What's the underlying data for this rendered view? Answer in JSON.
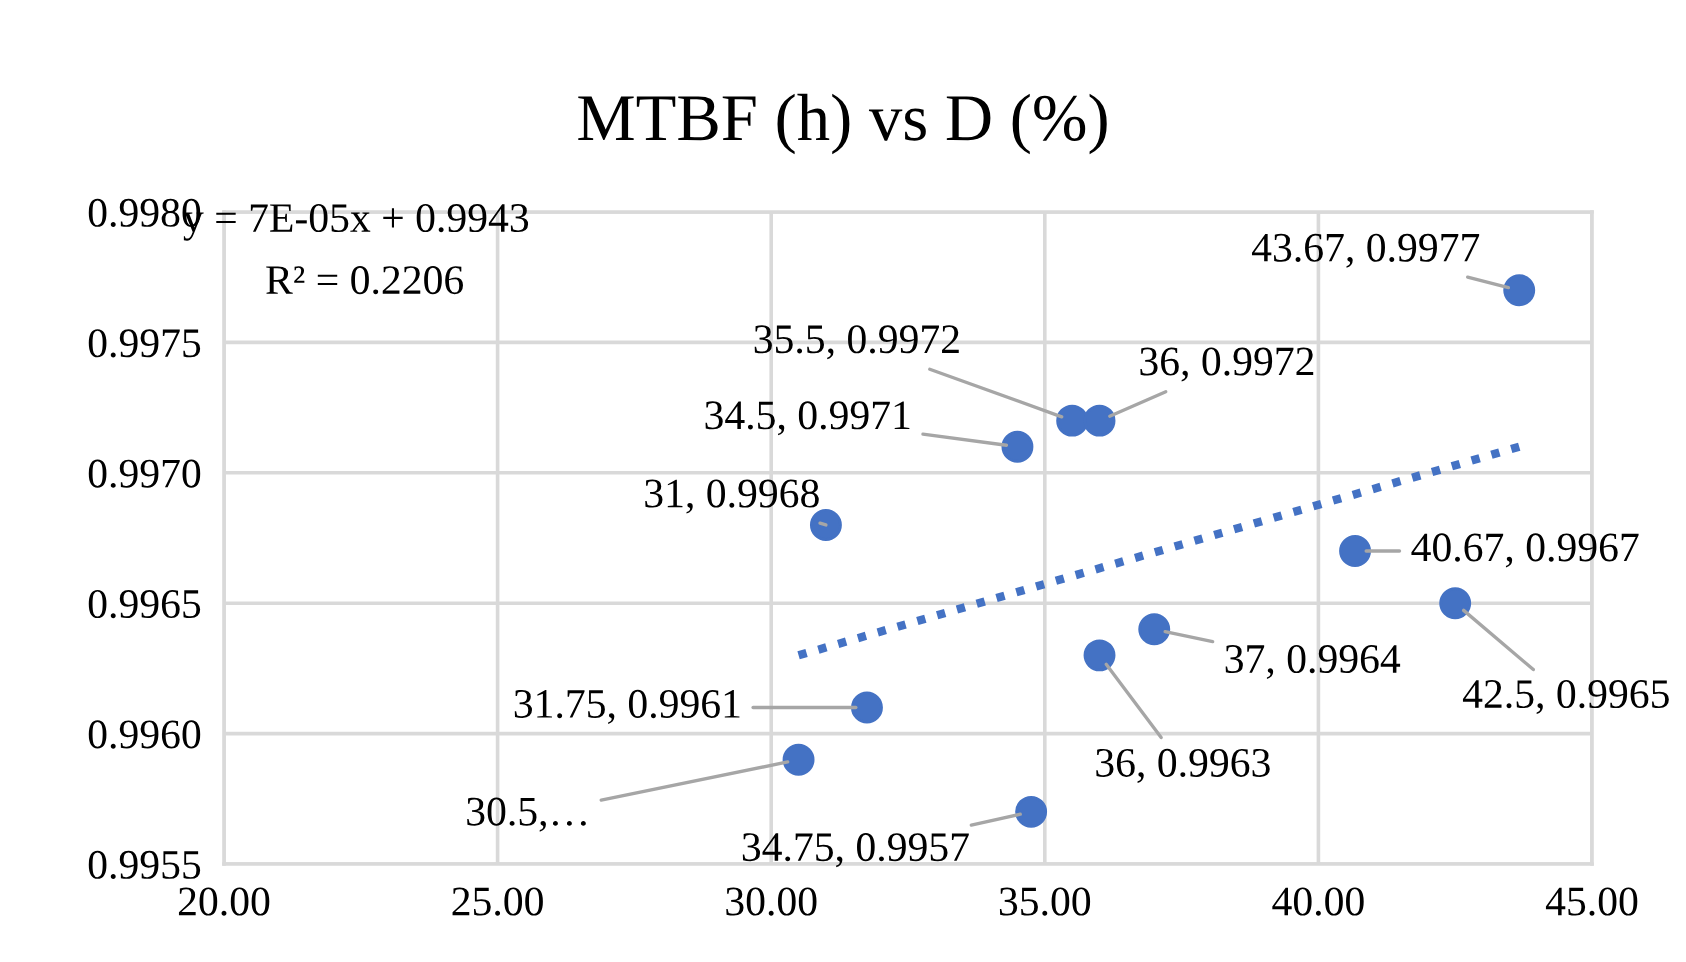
{
  "chart_data": {
    "type": "scatter",
    "title": "MTBF (h) vs D (%)",
    "x": [
      30.5,
      31,
      31.75,
      34.5,
      34.75,
      35.5,
      36,
      36,
      37,
      40.67,
      42.5,
      43.67
    ],
    "series": [
      {
        "color": "#4472c4",
        "marker": "circle",
        "values": [
          0.9959,
          0.9968,
          0.9961,
          0.9971,
          0.9957,
          0.9972,
          0.9972,
          0.9963,
          0.9964,
          0.9967,
          0.9965,
          0.9977
        ],
        "value_labels": [
          "30.5,…",
          "31, 0.9968",
          "31.75, 0.9961",
          "34.5, 0.9971",
          "34.75, 0.9957",
          "35.5, 0.9972",
          "36, 0.9972",
          "36, 0.9963",
          "37, 0.9964",
          "40.67, 0.9967",
          "42.5, 0.9965",
          "43.67, 0.9977"
        ]
      },
      {
        "type": "line",
        "color": "#4472c4",
        "line_style": "dotted",
        "marker": "none",
        "x": [
          30.5,
          43.67
        ],
        "values": [
          0.9963,
          0.9971
        ]
      }
    ],
    "annotations": [
      "y = 7E-05x + 0.9943",
      "R² = 0.2206"
    ],
    "xlim": [
      20,
      45
    ],
    "xticks": [
      {
        "value": 20,
        "label": "20.00"
      },
      {
        "value": 25,
        "label": "25.00"
      },
      {
        "value": 30,
        "label": "30.00"
      },
      {
        "value": 35,
        "label": "35.00"
      },
      {
        "value": 40,
        "label": "40.00"
      },
      {
        "value": 45,
        "label": "45.00"
      }
    ],
    "ylim": [
      0.9955,
      0.998
    ],
    "yticks": [
      {
        "value": 0.9955,
        "label": "0.9955"
      },
      {
        "value": 0.996,
        "label": "0.9960"
      },
      {
        "value": 0.9965,
        "label": "0.9965"
      },
      {
        "value": 0.997,
        "label": "0.9970"
      },
      {
        "value": 0.9975,
        "label": "0.9975"
      },
      {
        "value": 0.998,
        "label": "0.9980"
      }
    ],
    "grid": true,
    "legend": false
  }
}
